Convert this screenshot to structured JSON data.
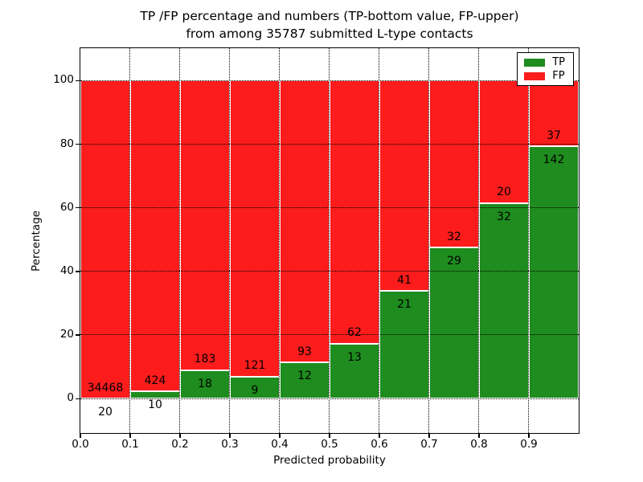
{
  "figure": {
    "title_line1": "TP /FP percentage and numbers (TP-bottom value, FP-upper)",
    "title_line2": "from among 35787 submitted L-type contacts"
  },
  "chart_data": {
    "type": "bar",
    "stacked": true,
    "units": "percent",
    "title": "TP /FP percentage and numbers (TP-bottom value, FP-upper) from among 35787 submitted L-type contacts",
    "xlabel": "Predicted probability",
    "ylabel": "Percentage",
    "xlim": [
      0.0,
      1.0
    ],
    "ylim": [
      -10.8,
      110.2
    ],
    "grid": "dotted-black",
    "background": "#ffffff",
    "bin_width": 0.1,
    "categories": [
      "0.0-0.1",
      "0.1-0.2",
      "0.2-0.3",
      "0.3-0.4",
      "0.4-0.5",
      "0.5-0.6",
      "0.6-0.7",
      "0.7-0.8",
      "0.8-0.9",
      "0.9-1.0"
    ],
    "xticks": [
      0.0,
      0.1,
      0.2,
      0.3,
      0.4,
      0.5,
      0.6,
      0.7,
      0.8,
      0.9
    ],
    "xtick_labels": [
      "0.0",
      "0.1",
      "0.2",
      "0.3",
      "0.4",
      "0.5",
      "0.6",
      "0.7",
      "0.8",
      "0.9"
    ],
    "yticks": [
      0,
      20,
      40,
      60,
      80,
      100
    ],
    "ytick_labels": [
      "0",
      "20",
      "40",
      "60",
      "80",
      "100"
    ],
    "series": [
      {
        "name": "TP",
        "color": "#1e8c1e",
        "counts": [
          20,
          10,
          18,
          9,
          12,
          13,
          21,
          29,
          32,
          142
        ]
      },
      {
        "name": "FP",
        "color": "#fc1c1c",
        "counts": [
          34468,
          424,
          183,
          121,
          93,
          62,
          41,
          32,
          20,
          37
        ]
      }
    ],
    "tp_percent": [
      0.06,
      2.3,
      8.96,
      6.92,
      11.43,
      17.33,
      33.87,
      47.54,
      61.54,
      79.33
    ],
    "total_contacts": 35787,
    "legend": {
      "position": "upper right",
      "entries": [
        {
          "label": "TP",
          "color": "#1e8c1e"
        },
        {
          "label": "FP",
          "color": "#fc1c1c"
        }
      ]
    }
  }
}
